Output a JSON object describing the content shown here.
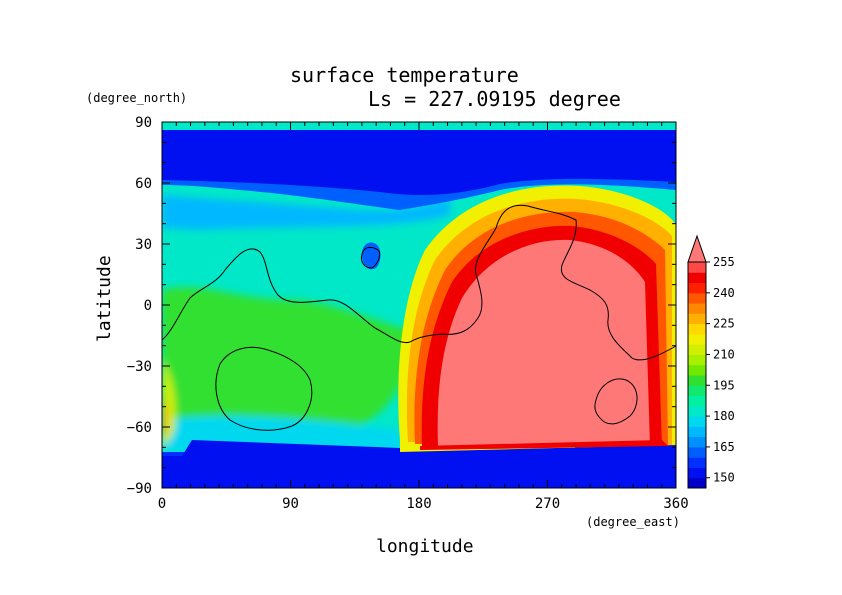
{
  "chart_data": {
    "type": "heatmap",
    "title": "surface temperature",
    "subtitle": "Ls = 227.09195 degree",
    "xlabel": "longitude",
    "ylabel": "latitude",
    "x_units": "(degree_east)",
    "y_units": "(degree_north)",
    "xlim": [
      0,
      360
    ],
    "ylim": [
      -90,
      90
    ],
    "x_ticks": [
      0,
      90,
      180,
      270,
      360
    ],
    "y_ticks": [
      -90,
      -60,
      -30,
      0,
      30,
      60,
      90
    ],
    "colorbar": {
      "levels": [
        145,
        150,
        155,
        160,
        165,
        170,
        175,
        180,
        185,
        190,
        195,
        200,
        205,
        210,
        215,
        220,
        225,
        230,
        235,
        240,
        245,
        250,
        255,
        260
      ],
      "labels": [
        150,
        165,
        180,
        195,
        210,
        225,
        240,
        255
      ],
      "colors": [
        "#0000c8",
        "#0010f0",
        "#0030ff",
        "#0060ff",
        "#0090ff",
        "#00b8ff",
        "#00d8f0",
        "#00e8c8",
        "#00f0a0",
        "#10e870",
        "#30e030",
        "#70e800",
        "#a8f000",
        "#d0f000",
        "#f0f000",
        "#ffd800",
        "#ffb000",
        "#ff8800",
        "#ff5800",
        "#ff2000",
        "#f00000",
        "#ff4848",
        "#ff7878"
      ],
      "extend": "max"
    },
    "grid": false
  }
}
